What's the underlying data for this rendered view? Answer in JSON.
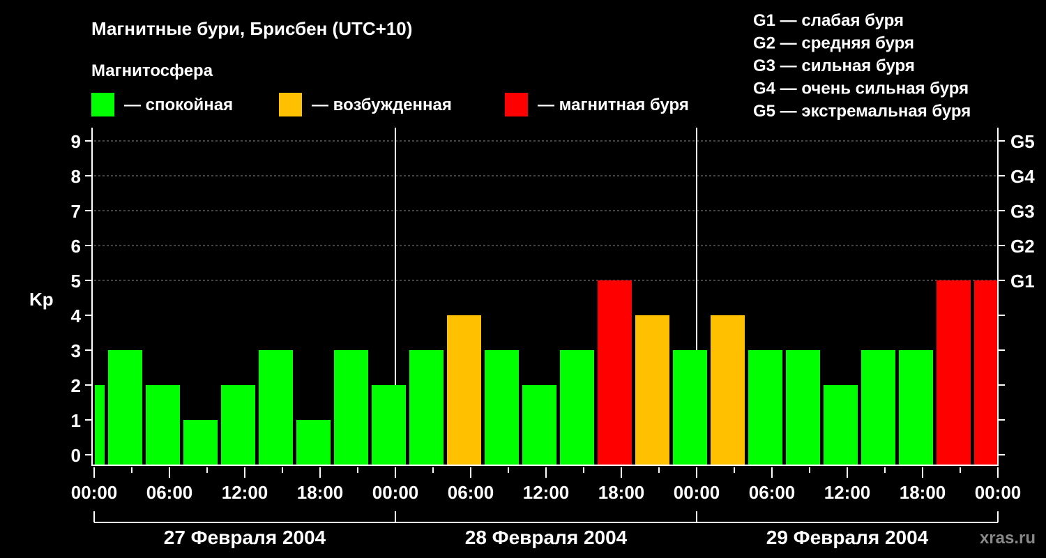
{
  "chart_data": {
    "type": "bar",
    "title": "Магнитные бури, Брисбен (UTC+10)",
    "legend_title": "Магнитосфера",
    "legend": [
      {
        "label": "— спокойная",
        "color": "#00ff00"
      },
      {
        "label": "— возбужденная",
        "color": "#ffc000"
      },
      {
        "label": "— магнитная буря",
        "color": "#ff0000"
      }
    ],
    "storm_scale": [
      "G1 — слабая буря",
      "G2 — средняя буря",
      "G3 — сильная буря",
      "G4 — очень сильная буря",
      "G5 — экстремальная буря"
    ],
    "ylabel": "Kp",
    "ylim": [
      0,
      9
    ],
    "yticks": [
      "0",
      "1",
      "2",
      "3",
      "4",
      "5",
      "6",
      "7",
      "8",
      "9"
    ],
    "right_ticks": [
      {
        "kp": 5,
        "label": "G1"
      },
      {
        "kp": 6,
        "label": "G2"
      },
      {
        "kp": 7,
        "label": "G3"
      },
      {
        "kp": 8,
        "label": "G4"
      },
      {
        "kp": 9,
        "label": "G5"
      }
    ],
    "x_hours_range": [
      0,
      72
    ],
    "xtick_labels": [
      "00:00",
      "06:00",
      "12:00",
      "18:00",
      "00:00",
      "06:00",
      "12:00",
      "18:00",
      "00:00",
      "06:00",
      "12:00",
      "18:00",
      "00:00"
    ],
    "days": [
      "27 Февраля 2004",
      "28 Февраля 2004",
      "29 Февраля 2004"
    ],
    "bars_start_hour": [
      -2,
      1,
      4,
      7,
      10,
      13,
      16,
      19,
      22,
      25,
      28,
      31,
      34,
      37,
      40,
      43,
      46,
      49,
      52,
      55,
      58,
      61,
      64,
      67,
      70
    ],
    "values": [
      2,
      3,
      2,
      1,
      2,
      3,
      1,
      3,
      2,
      3,
      4,
      3,
      2,
      3,
      5,
      4,
      3,
      4,
      3,
      3,
      2,
      3,
      3,
      5,
      5
    ],
    "grid": "dashed horizontal at Kp 5-9"
  },
  "watermark": "xras.ru"
}
